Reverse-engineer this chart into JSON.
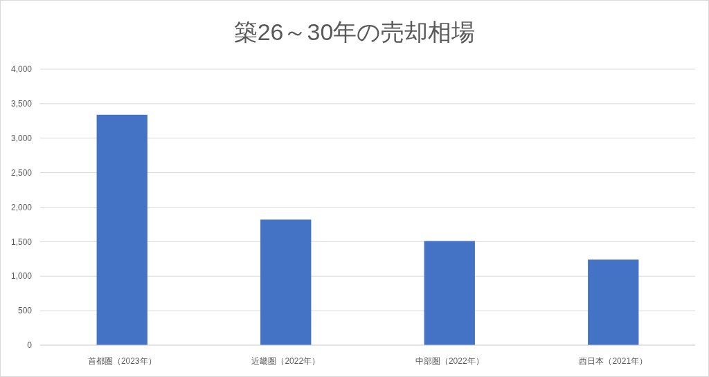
{
  "chart_data": {
    "type": "bar",
    "title": "築26～30年の売却相場",
    "categories": [
      "首都圏（2023年）",
      "近畿圏（2022年）",
      "中部圏（2022年）",
      "西日本（2021年）"
    ],
    "values": [
      3340,
      1820,
      1510,
      1240
    ],
    "color": "#4472c4",
    "ylim": [
      0,
      4000
    ],
    "yticks": [
      {
        "value": 0,
        "label": "0"
      },
      {
        "value": 500,
        "label": "500"
      },
      {
        "value": 1000,
        "label": "1,000"
      },
      {
        "value": 1500,
        "label": "1,500"
      },
      {
        "value": 2000,
        "label": "2,000"
      },
      {
        "value": 2500,
        "label": "2,500"
      },
      {
        "value": 3000,
        "label": "3,000"
      },
      {
        "value": 3500,
        "label": "3,500"
      },
      {
        "value": 4000,
        "label": "4,000"
      }
    ],
    "grid": true
  }
}
